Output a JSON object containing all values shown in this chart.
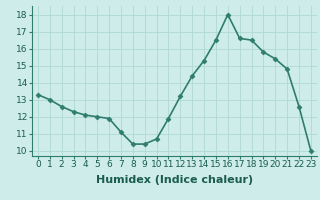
{
  "x": [
    0,
    1,
    2,
    3,
    4,
    5,
    6,
    7,
    8,
    9,
    10,
    11,
    12,
    13,
    14,
    15,
    16,
    17,
    18,
    19,
    20,
    21,
    22,
    23
  ],
  "y": [
    13.3,
    13.0,
    12.6,
    12.3,
    12.1,
    12.0,
    11.9,
    11.1,
    10.4,
    10.4,
    10.7,
    11.9,
    13.2,
    14.4,
    15.3,
    16.5,
    18.0,
    16.6,
    16.5,
    15.8,
    15.4,
    14.8,
    12.6,
    10.0
  ],
  "line_color": "#2e7d6e",
  "marker": "D",
  "marker_size": 2.5,
  "background_color": "#ceecea",
  "grid_color": "#b0d8d5",
  "xlabel": "Humidex (Indice chaleur)",
  "xlim_min": -0.5,
  "xlim_max": 23.5,
  "ylim_min": 9.7,
  "ylim_max": 18.5,
  "yticks": [
    10,
    11,
    12,
    13,
    14,
    15,
    16,
    17,
    18
  ],
  "xticks": [
    0,
    1,
    2,
    3,
    4,
    5,
    6,
    7,
    8,
    9,
    10,
    11,
    12,
    13,
    14,
    15,
    16,
    17,
    18,
    19,
    20,
    21,
    22,
    23
  ],
  "xlabel_fontsize": 8,
  "tick_fontsize": 6.5,
  "linewidth": 1.2
}
